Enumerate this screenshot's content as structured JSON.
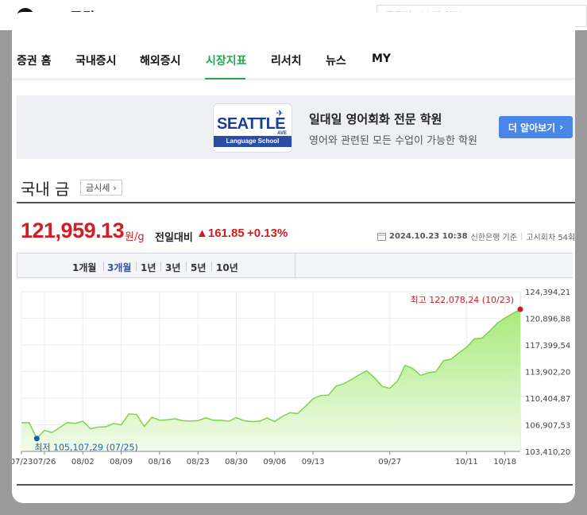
{
  "header": {
    "logo_letter": "N",
    "logo_pay": "pay",
    "logo_section": "증권",
    "search_placeholder": "종목명·지수명 입력"
  },
  "nav": {
    "items": [
      {
        "label": "증권 홈"
      },
      {
        "label": "국내증시"
      },
      {
        "label": "해외증시"
      },
      {
        "label": "시장지표"
      },
      {
        "label": "리서치"
      },
      {
        "label": "뉴스"
      },
      {
        "label": "MY"
      }
    ],
    "active": "시장지표"
  },
  "ad": {
    "logo_text": "SEATTLE",
    "logo_sub": "Language School",
    "logo_tag": "AVE",
    "title": "일대일 영어회화 전문 학원",
    "desc": "영어와 관련된 모든 수업이 가능한 학원",
    "button": "더 알아보기",
    "button_arrow": "›"
  },
  "section": {
    "title": "국내 금",
    "tax_button": "금시세",
    "tax_arrow": "›"
  },
  "quote": {
    "price": "121,959.13",
    "unit": "원/g",
    "compare_label": "전일대비",
    "change_arrow": "▲",
    "change": "161.85",
    "change_pct": "+0.13%",
    "datetime": "2024.10.23 10:38",
    "source": "신한은행 기준",
    "notice": "고시회차 54회"
  },
  "periods": [
    {
      "label": "1개월"
    },
    {
      "label": "3개월"
    },
    {
      "label": "1년"
    },
    {
      "label": "3년"
    },
    {
      "label": "5년"
    },
    {
      "label": "10년"
    }
  ],
  "active_period": "3개월",
  "colors": {
    "accent_green": "#1fa94b",
    "up_red": "#d21d24",
    "low_blue": "#1a5fb4",
    "line_green": "#7cd448"
  },
  "chart_data": {
    "type": "area",
    "ylim": [
      103410.2,
      124394.21
    ],
    "y_ticks": [
      "124,394,21",
      "120,896,88",
      "117,399,54",
      "113,902,20",
      "110,404,87",
      "106,907,53",
      "103,410,20"
    ],
    "x_tick_labels": [
      "07/23",
      "07/26",
      "08/02",
      "08/09",
      "08/16",
      "08/23",
      "08/30",
      "09/06",
      "09/13",
      "09/27",
      "10/11",
      "10/18"
    ],
    "x_tick_index": [
      0,
      3,
      8,
      13,
      18,
      23,
      28,
      33,
      38,
      48,
      58,
      63
    ],
    "values": [
      107180,
      107190,
      105107,
      106180,
      105900,
      106550,
      107220,
      107100,
      107380,
      106380,
      106600,
      106650,
      107080,
      106900,
      108330,
      108260,
      106700,
      107900,
      107500,
      107550,
      107700,
      107450,
      107400,
      107450,
      107830,
      107500,
      107500,
      107380,
      107850,
      107450,
      107330,
      107380,
      107800,
      107350,
      108000,
      108500,
      108380,
      109330,
      110330,
      110760,
      110800,
      111990,
      112300,
      112860,
      113470,
      114000,
      113100,
      111950,
      111700,
      112650,
      114730,
      114300,
      113400,
      113730,
      113880,
      115330,
      115530,
      116360,
      117090,
      118180,
      118300,
      119220,
      120250,
      120930,
      121500,
      122078
    ],
    "high": {
      "label": "최고",
      "value": "122,078,24",
      "date": "(10/23)"
    },
    "low": {
      "label": "최저",
      "value": "105,107,29",
      "date": "(07/25)"
    }
  }
}
